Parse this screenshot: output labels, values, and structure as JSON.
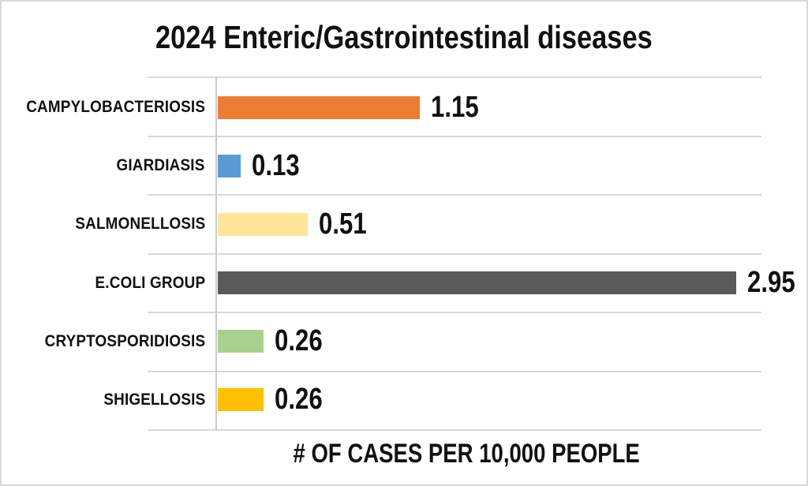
{
  "chart_data": {
    "type": "bar",
    "orientation": "horizontal",
    "title": "2024 Enteric/Gastrointestinal diseases",
    "xlabel": "# OF CASES PER 10,000 PEOPLE",
    "categories": [
      "CAMPYLOBACTERIOSIS",
      "GIARDIASIS",
      "SALMONELLOSIS",
      "E.COLI GROUP",
      "CRYPTOSPORIDIOSIS",
      "SHIGELLOSIS"
    ],
    "values": [
      1.15,
      0.13,
      0.51,
      2.95,
      0.26,
      0.26
    ],
    "value_labels": [
      "1.15",
      "0.13",
      "0.51",
      "2.95",
      "0.26",
      "0.26"
    ],
    "bar_colors": [
      "#ED7D31",
      "#5B9BD5",
      "#FFE699",
      "#595959",
      "#A9D18E",
      "#FFC000"
    ],
    "xlim": [
      0,
      3.1
    ],
    "grid": true,
    "legend": false,
    "gridline_color": "#D9D9D9",
    "background_color": "#FFFFFF",
    "text_color": "#111111"
  }
}
